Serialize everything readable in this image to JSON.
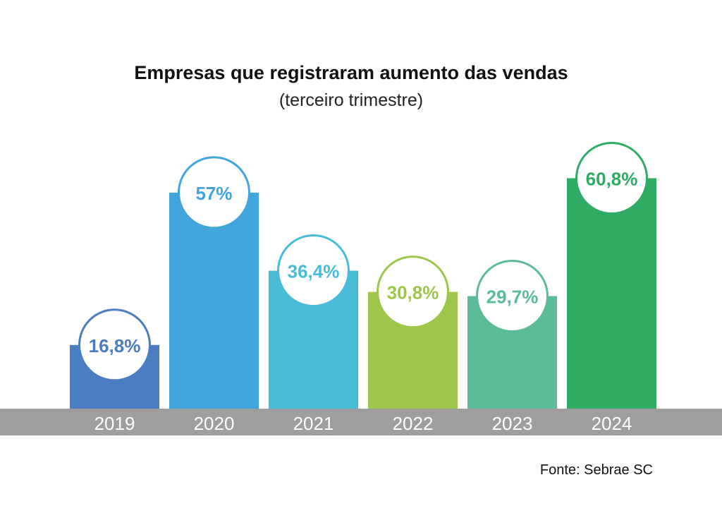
{
  "chart_data": {
    "type": "bar",
    "title": "Empresas que registraram aumento das vendas",
    "subtitle": "(terceiro trimestre)",
    "categories": [
      "2019",
      "2020",
      "2021",
      "2022",
      "2023",
      "2024"
    ],
    "values": [
      16.8,
      57,
      36.4,
      30.8,
      29.7,
      60.8
    ],
    "data_labels": [
      "16,8%",
      "57%",
      "36,4%",
      "30,8%",
      "29,7%",
      "60,8%"
    ],
    "colors": [
      "#4a7dc2",
      "#42a5dc",
      "#48bcd7",
      "#9ec64a",
      "#5bbb97",
      "#2fab64"
    ],
    "xlabel": "",
    "ylabel": "",
    "source": "Fonte: Sebrae SC"
  }
}
